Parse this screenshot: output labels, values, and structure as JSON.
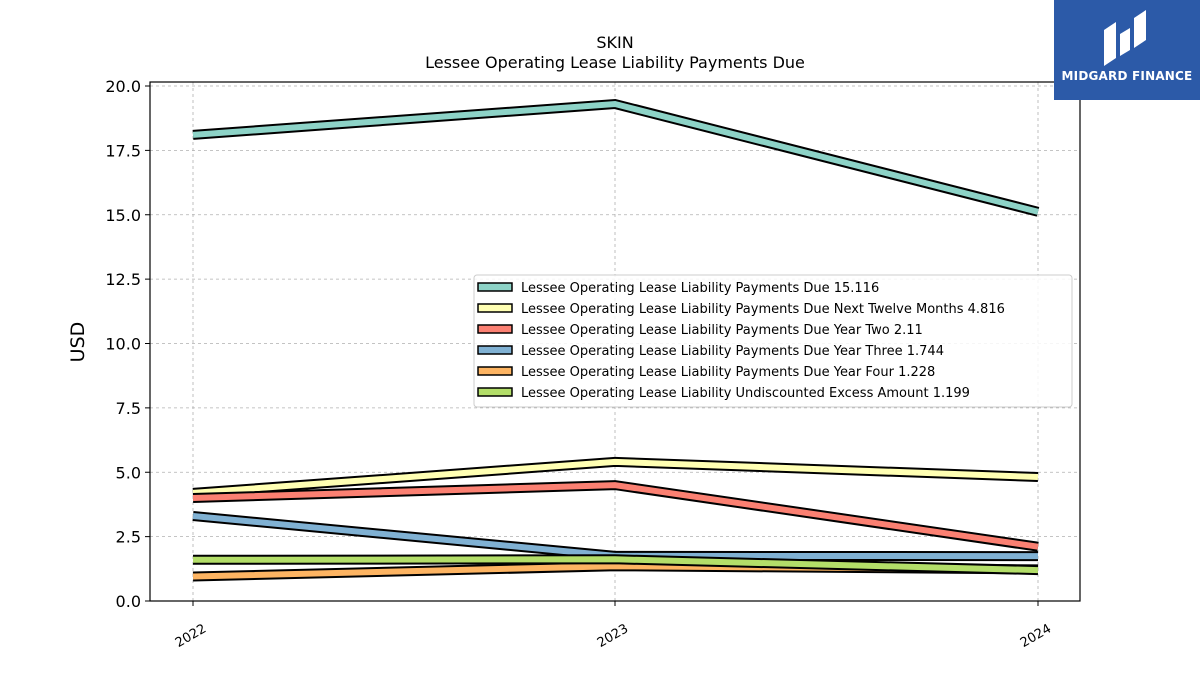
{
  "logo": {
    "text": "MIDGARD FINANCE"
  },
  "chart_data": {
    "type": "line",
    "title": "SKIN",
    "subtitle": "Lessee Operating Lease Liability Payments Due",
    "xlabel": "",
    "ylabel": "USD",
    "categories": [
      "2022",
      "2023",
      "2024"
    ],
    "ylim": [
      0,
      20
    ],
    "yticks": [
      "0.0",
      "2.5",
      "5.0",
      "7.5",
      "10.0",
      "12.5",
      "15.0",
      "17.5",
      "20.0"
    ],
    "grid": true,
    "legend_position": "center-right",
    "series": [
      {
        "name": "Lessee Operating Lease Liability Payments Due",
        "legend": "Lessee Operating Lease Liability Payments Due  15.116",
        "values": [
          18.1,
          19.3,
          15.116
        ],
        "color": "#8dd3c7"
      },
      {
        "name": "Lessee Operating Lease Liability Payments Due Next Twelve Months",
        "legend": "Lessee Operating Lease Liability Payments Due Next Twelve Months  4.816",
        "values": [
          4.2,
          5.4,
          4.816
        ],
        "color": "#ffffb3"
      },
      {
        "name": "Lessee Operating Lease Liability Payments Due Year Two",
        "legend": "Lessee Operating Lease Liability Payments Due Year Two  2.11",
        "values": [
          4.0,
          4.5,
          2.11
        ],
        "color": "#fb8072"
      },
      {
        "name": "Lessee Operating Lease Liability Payments Due Year Three",
        "legend": "Lessee Operating Lease Liability Payments Due Year Three  1.744",
        "values": [
          3.3,
          1.75,
          1.744
        ],
        "color": "#80b1d3"
      },
      {
        "name": "Lessee Operating Lease Liability Payments Due Year Four",
        "legend": "Lessee Operating Lease Liability Payments Due Year Four  1.228",
        "values": [
          0.95,
          1.35,
          1.228
        ],
        "color": "#fdb462"
      },
      {
        "name": "Lessee Operating Lease Liability Undiscounted Excess Amount",
        "legend": "Lessee Operating Lease Liability Undiscounted Excess Amount  1.199",
        "values": [
          1.6,
          1.62,
          1.199
        ],
        "color": "#b3de69"
      }
    ]
  }
}
